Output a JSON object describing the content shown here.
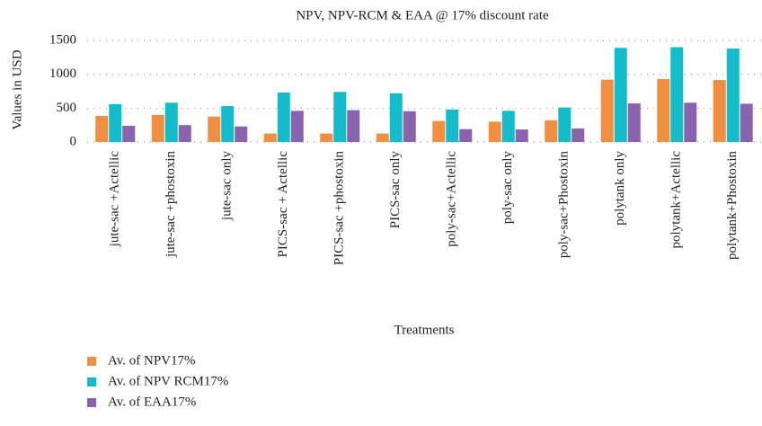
{
  "chart_data": {
    "type": "bar",
    "title": "NPV, NPV-RCM & EAA @ 17% discount rate",
    "x_label": "Treatments",
    "y_label": "Values in USD",
    "categories": [
      "jute-sac +Actellic",
      "jute-sac +phostoxin",
      "jute-sac only",
      "PICS-sac + Actellic",
      "PICS-sac +phostoxin",
      "PICS-sac only",
      "poly-sac+Actellic",
      "poly-sac only",
      "poly-sac+Phostoxin",
      "polytank only",
      "polytank+Actellic",
      "polytank+Phostoxin"
    ],
    "series": [
      {
        "name": "Av. of NPV17%",
        "color": "#f28e3f",
        "values": [
          385,
          400,
          375,
          125,
          125,
          125,
          310,
          300,
          320,
          920,
          930,
          915
        ]
      },
      {
        "name": "Av. of NPV RCM17%",
        "color": "#12bccb",
        "values": [
          560,
          580,
          530,
          730,
          740,
          720,
          480,
          460,
          510,
          1390,
          1400,
          1380
        ]
      },
      {
        "name": "Av. of EAA17%",
        "color": "#8a63ae",
        "values": [
          240,
          250,
          230,
          460,
          470,
          455,
          190,
          185,
          200,
          570,
          580,
          565
        ]
      }
    ],
    "ylim": [
      0,
      1500
    ],
    "yticks": [
      0,
      500,
      1000,
      1500
    ],
    "grid": true,
    "legend": "bottom-left"
  }
}
